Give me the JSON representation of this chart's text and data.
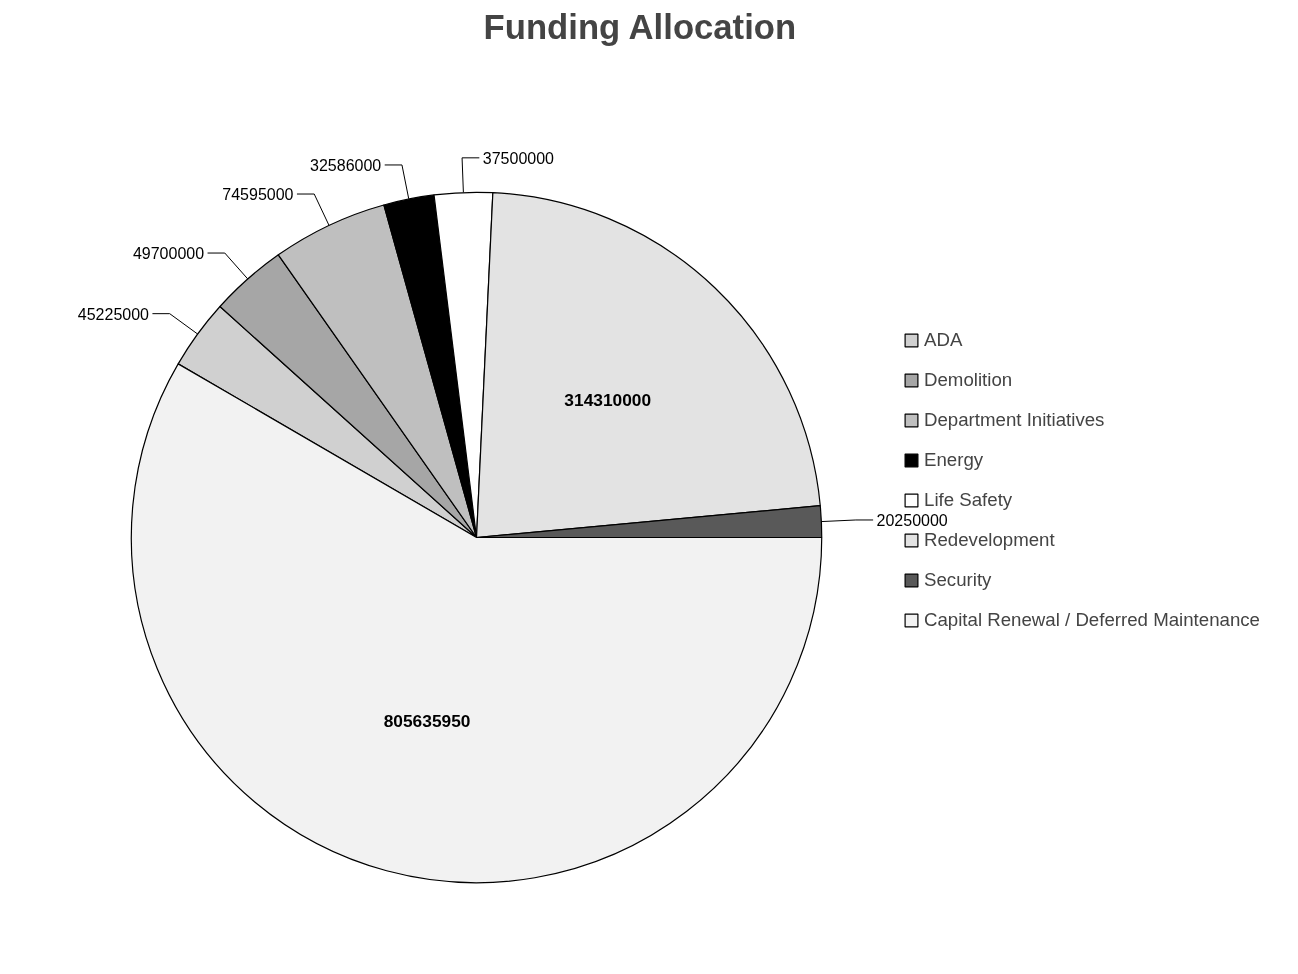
{
  "chart_data": {
    "type": "pie",
    "title": "Funding Allocation",
    "categories": [
      "ADA",
      "Demolition",
      "Department Initiatives",
      "Energy",
      "Life Safety",
      "Redevelopment",
      "Security",
      "Capital Renewal / Deferred Maintenance"
    ],
    "values": [
      45225000,
      49700000,
      74595000,
      32586000,
      37500000,
      314310000,
      20250000,
      805635950
    ],
    "colors": [
      "#d0d0d0",
      "#a6a6a6",
      "#bfbfbf",
      "#000000",
      "#ffffff",
      "#e3e3e3",
      "#595959",
      "#f2f2f2"
    ],
    "data_labels": true,
    "legend": "right"
  }
}
